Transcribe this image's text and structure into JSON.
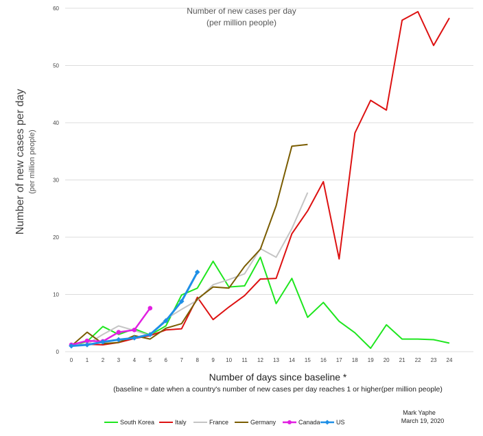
{
  "chart_data": {
    "type": "line",
    "title": "Number of new cases per day",
    "subtitle": "(per million people)",
    "ylabel": "Number of new cases per day",
    "ylabel_sub": "(per million people)",
    "xlabel": "Number of days since baseline *",
    "footnote": "(baseline =  date when a country's number of new cases per day reaches 1 or higher(per million people)",
    "credit_name": "Mark Yaphe",
    "credit_date": "March 19, 2020",
    "xlim": [
      0,
      24
    ],
    "ylim": [
      0,
      60
    ],
    "yticks": [
      0,
      10,
      20,
      30,
      40,
      50,
      60
    ],
    "xticks": [
      0,
      1,
      2,
      3,
      4,
      5,
      6,
      7,
      8,
      9,
      10,
      11,
      12,
      13,
      14,
      15,
      16,
      17,
      18,
      19,
      20,
      21,
      22,
      23,
      24
    ],
    "grid": "horizontal",
    "legend_position": "bottom",
    "series": [
      {
        "name": "South Korea",
        "color": "#1ee61e",
        "marker": "none",
        "x": [
          0,
          1,
          2,
          3,
          4,
          5,
          6,
          7,
          8,
          9,
          10,
          11,
          12,
          13,
          14,
          15,
          16,
          17,
          18,
          19,
          20,
          21,
          22,
          23,
          24
        ],
        "y": [
          1.0,
          1.8,
          4.4,
          3.0,
          4.0,
          2.9,
          4.5,
          9.9,
          11.1,
          15.8,
          11.3,
          11.5,
          16.5,
          8.4,
          12.8,
          6.0,
          8.6,
          5.3,
          3.3,
          0.6,
          4.7,
          2.2,
          2.2,
          2.1,
          1.5
        ]
      },
      {
        "name": "Italy",
        "color": "#dd1111",
        "marker": "none",
        "x": [
          0,
          1,
          2,
          3,
          4,
          5,
          6,
          7,
          8,
          9,
          10,
          11,
          12,
          13,
          14,
          15,
          16,
          17,
          18,
          19,
          20,
          21,
          22,
          23,
          24
        ],
        "y": [
          1.0,
          1.3,
          1.2,
          1.6,
          2.3,
          2.8,
          3.8,
          4.0,
          9.5,
          5.6,
          7.8,
          9.8,
          12.7,
          12.8,
          20.6,
          24.6,
          29.7,
          16.2,
          38.2,
          43.9,
          42.2,
          57.9,
          59.4,
          53.5,
          58.3
        ]
      },
      {
        "name": "France",
        "color": "#c4c4c4",
        "marker": "none",
        "x": [
          0,
          1,
          2,
          3,
          4,
          5,
          6,
          7,
          8,
          9,
          10,
          11,
          12,
          13,
          14,
          15
        ],
        "y": [
          1.2,
          1.3,
          3.0,
          4.5,
          3.7,
          2.8,
          5.7,
          7.4,
          9.0,
          11.7,
          12.6,
          13.6,
          18.0,
          16.5,
          21.5,
          27.8
        ]
      },
      {
        "name": "Germany",
        "color": "#7a5c00",
        "marker": "none",
        "x": [
          0,
          1,
          2,
          3,
          4,
          5,
          6,
          7,
          8,
          9,
          10,
          11,
          12,
          13,
          14,
          15
        ],
        "y": [
          1.0,
          3.4,
          1.4,
          1.6,
          2.8,
          2.2,
          4.1,
          4.9,
          9.2,
          11.3,
          11.1,
          14.9,
          17.9,
          25.5,
          35.9,
          36.2
        ]
      },
      {
        "name": "Canada",
        "color": "#e11fe1",
        "marker": "circle",
        "x": [
          0,
          1,
          2,
          3,
          4,
          5
        ],
        "y": [
          1.2,
          1.9,
          1.8,
          3.4,
          3.8,
          7.6
        ]
      },
      {
        "name": "US",
        "color": "#1e8fe6",
        "marker": "diamond",
        "x": [
          0,
          1,
          2,
          3,
          4,
          5,
          6,
          7,
          8
        ],
        "y": [
          1.0,
          1.2,
          1.7,
          2.1,
          2.4,
          3.0,
          5.4,
          8.8,
          13.9
        ]
      }
    ]
  }
}
